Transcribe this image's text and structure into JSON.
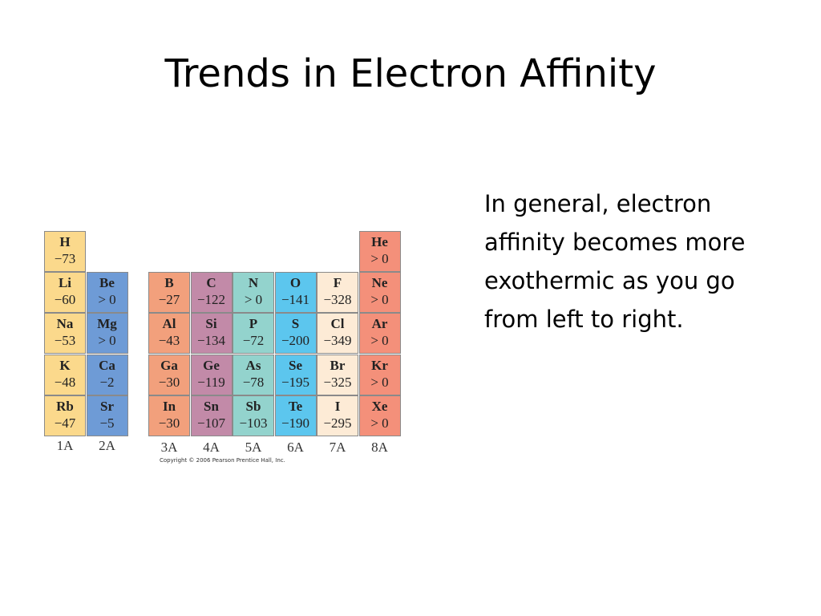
{
  "title": "Trends in Electron Affinity",
  "body": "In general, electron affinity becomes more exothermic as you go from left to right.",
  "table": {
    "groups": [
      {
        "label": "1A",
        "elements": [
          {
            "symbol": "H",
            "value": "−73"
          },
          {
            "symbol": "Li",
            "value": "−60"
          },
          {
            "symbol": "Na",
            "value": "−53"
          },
          {
            "symbol": "K",
            "value": "−48"
          },
          {
            "symbol": "Rb",
            "value": "−47"
          }
        ]
      },
      {
        "label": "2A",
        "elements": [
          {
            "symbol": "Be",
            "value": "> 0"
          },
          {
            "symbol": "Mg",
            "value": "> 0"
          },
          {
            "symbol": "Ca",
            "value": "−2"
          },
          {
            "symbol": "Sr",
            "value": "−5"
          }
        ]
      },
      {
        "label": "3A",
        "elements": [
          {
            "symbol": "B",
            "value": "−27"
          },
          {
            "symbol": "Al",
            "value": "−43"
          },
          {
            "symbol": "Ga",
            "value": "−30"
          },
          {
            "symbol": "In",
            "value": "−30"
          }
        ]
      },
      {
        "label": "4A",
        "elements": [
          {
            "symbol": "C",
            "value": "−122"
          },
          {
            "symbol": "Si",
            "value": "−134"
          },
          {
            "symbol": "Ge",
            "value": "−119"
          },
          {
            "symbol": "Sn",
            "value": "−107"
          }
        ]
      },
      {
        "label": "5A",
        "elements": [
          {
            "symbol": "N",
            "value": "> 0"
          },
          {
            "symbol": "P",
            "value": "−72"
          },
          {
            "symbol": "As",
            "value": "−78"
          },
          {
            "symbol": "Sb",
            "value": "−103"
          }
        ]
      },
      {
        "label": "6A",
        "elements": [
          {
            "symbol": "O",
            "value": "−141"
          },
          {
            "symbol": "S",
            "value": "−200"
          },
          {
            "symbol": "Se",
            "value": "−195"
          },
          {
            "symbol": "Te",
            "value": "−190"
          }
        ]
      },
      {
        "label": "7A",
        "elements": [
          {
            "symbol": "F",
            "value": "−328"
          },
          {
            "symbol": "Cl",
            "value": "−349"
          },
          {
            "symbol": "Br",
            "value": "−325"
          },
          {
            "symbol": "I",
            "value": "−295"
          }
        ]
      },
      {
        "label": "8A",
        "elements": [
          {
            "symbol": "He",
            "value": "> 0"
          },
          {
            "symbol": "Ne",
            "value": "> 0"
          },
          {
            "symbol": "Ar",
            "value": "> 0"
          },
          {
            "symbol": "Kr",
            "value": "> 0"
          },
          {
            "symbol": "Xe",
            "value": "> 0"
          }
        ]
      }
    ]
  },
  "copyright": "Copyright © 2006 Pearson Prentice Hall, Inc."
}
